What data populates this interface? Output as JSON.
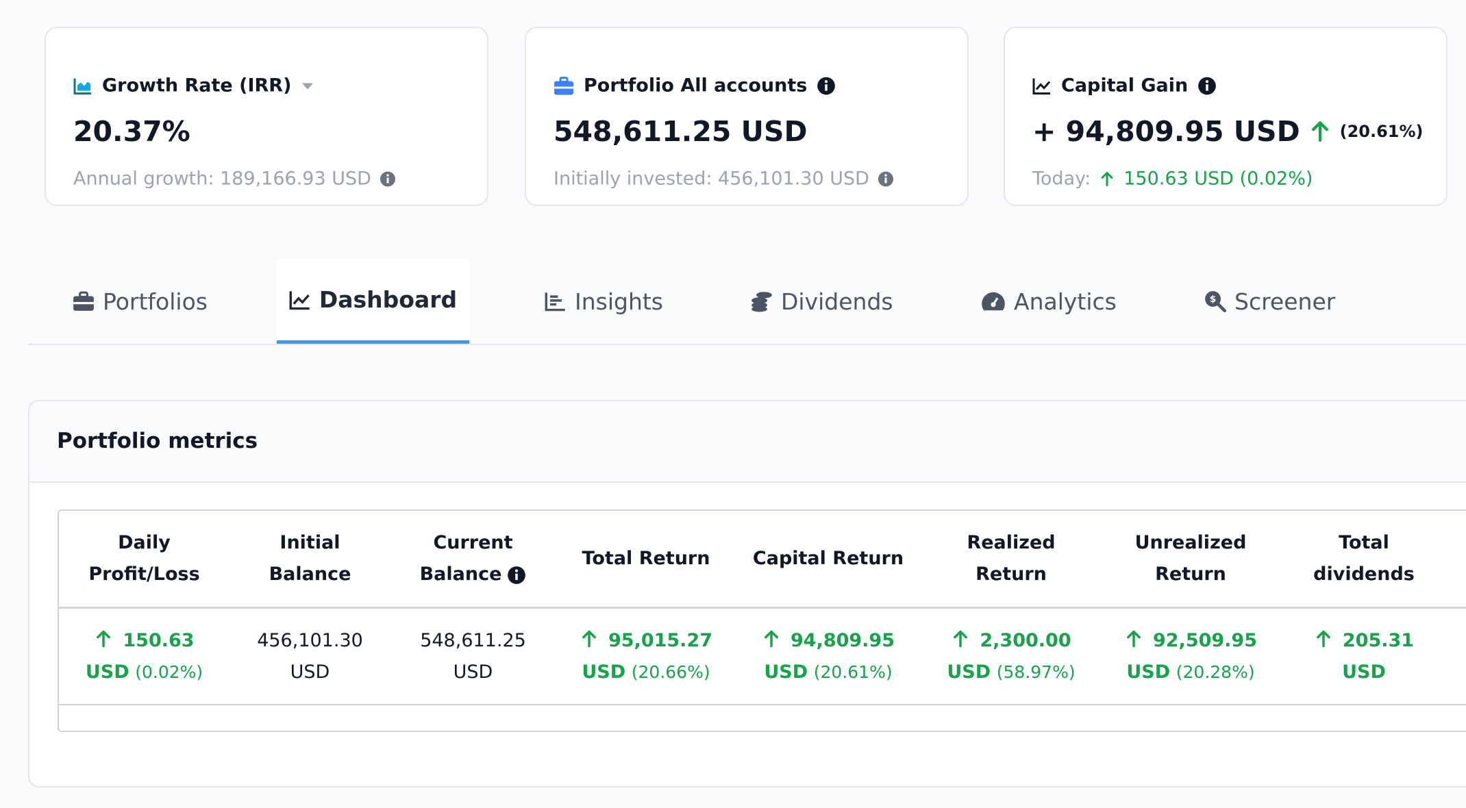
{
  "cards": [
    {
      "title": "Growth Rate (IRR)",
      "value": "20.37%",
      "sub": "Annual growth: 189,166.93 USD"
    },
    {
      "title": "Portfolio All accounts",
      "value": "548,611.25 USD",
      "sub": "Initially invested: 456,101.30 USD"
    },
    {
      "title": "Capital Gain",
      "value": "+ 94,809.95 USD",
      "change": "(20.61%)",
      "sub_label": "Today:",
      "sub": "150.63 USD (0.02%)"
    }
  ],
  "tabs": [
    {
      "label": "Portfolios",
      "active": false
    },
    {
      "label": "Dashboard",
      "active": true
    },
    {
      "label": "Insights",
      "active": false
    },
    {
      "label": "Dividends",
      "active": false
    },
    {
      "label": "Analytics",
      "active": false
    },
    {
      "label": "Screener",
      "active": false
    }
  ],
  "section": {
    "title": "Portfolio metrics"
  },
  "table": {
    "headers": [
      "Daily Profit/Loss",
      "Initial Balance",
      "Current Balance",
      "Total Return",
      "Capital Return",
      "Realized Return",
      "Unrealized Return",
      "Total dividends"
    ],
    "rows": [
      [
        {
          "value": "150.63 USD",
          "pct": "(0.02%)",
          "positive": true
        },
        {
          "value": "456,101.30 USD",
          "positive": false
        },
        {
          "value": "548,611.25 USD",
          "positive": false
        },
        {
          "value": "95,015.27 USD",
          "pct": "(20.66%)",
          "positive": true
        },
        {
          "value": "94,809.95 USD",
          "pct": "(20.61%)",
          "positive": true
        },
        {
          "value": "2,300.00 USD",
          "pct": "(58.97%)",
          "positive": true
        },
        {
          "value": "92,509.95 USD",
          "pct": "(20.28%)",
          "positive": true
        },
        {
          "value": "205.31 USD",
          "positive": true
        }
      ]
    ]
  }
}
